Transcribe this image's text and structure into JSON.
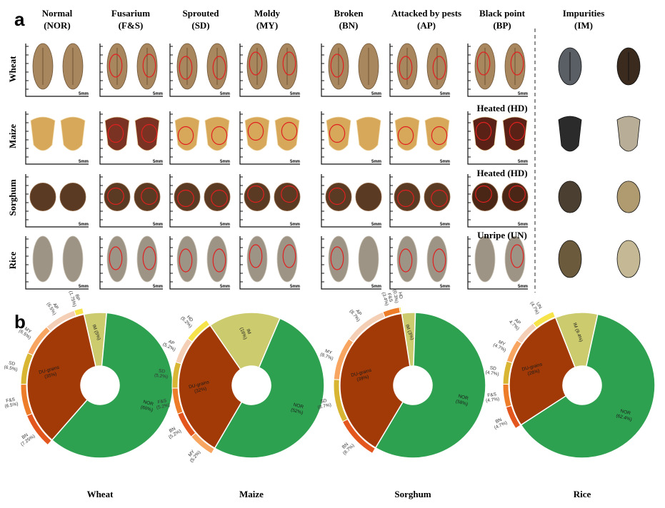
{
  "panel_a": {
    "letter": "a",
    "columns": [
      {
        "name": "Normal",
        "code": "(NOR)"
      },
      {
        "name": "Fusarium",
        "code": "(F&S)"
      },
      {
        "name": "Sprouted",
        "code": "(SD)"
      },
      {
        "name": "Moldy",
        "code": "(MY)"
      },
      {
        "name": "Broken",
        "code": "(BN)"
      },
      {
        "name": "Attacked by pests",
        "code": "(AP)"
      },
      {
        "name": "Black point",
        "code": "(BP)"
      },
      {
        "name": "Impurities",
        "code": "(IM)"
      }
    ],
    "rows": [
      "Wheat",
      "Maize",
      "Sorghum",
      "Rice"
    ],
    "sublabels": [
      "Heated (HD)",
      "Heated (HD)",
      "Unripe (UN)"
    ],
    "scale_label": "5mm",
    "scale_unit": "5\nmm",
    "colors": {
      "wheat": "#a8865e",
      "wheat_dark": "#6e5436",
      "maize": "#d8a85a",
      "maize_light": "#eed9a8",
      "sorghum": "#5a3a22",
      "sorghum_light": "#8a6242",
      "rice": "#9e9486",
      "rice_light": "#c9c2b4",
      "defect_outline": "#e02020"
    }
  },
  "panel_b": {
    "letter": "b",
    "charts": [
      "Wheat",
      "Maize",
      "Sorghum",
      "Rice"
    ]
  },
  "chart_data": [
    {
      "type": "pie",
      "title": "Wheat",
      "inner": [
        {
          "label": "NOR",
          "text": "NOR\n(60%)",
          "value": 60,
          "color": "#2ea150"
        },
        {
          "label": "DU-grains",
          "text": "DU-grains\n(35%)",
          "value": 35,
          "color": "#a23a07"
        },
        {
          "label": "IM",
          "text": "IM (5%)",
          "value": 5,
          "color": "#cccb6e"
        }
      ],
      "outer": [
        {
          "label": "BP (1.75%)",
          "value": 1.75,
          "color": "#f7e34a"
        },
        {
          "label": "AP (6.5%)",
          "value": 6.5,
          "color": "#f5cfb5"
        },
        {
          "label": "MY (6.5%)",
          "value": 6.5,
          "color": "#f7a560"
        },
        {
          "label": "SD (6.5%)",
          "value": 6.5,
          "color": "#d8b634"
        },
        {
          "label": "F&S (6.5%)",
          "value": 6.5,
          "color": "#ee7d2a"
        },
        {
          "label": "BN (7.25%)",
          "value": 7.25,
          "color": "#e3561e"
        }
      ]
    },
    {
      "type": "pie",
      "title": "Maize",
      "inner": [
        {
          "label": "NOR",
          "text": "NOR\n(52%)",
          "value": 52,
          "color": "#2ea150"
        },
        {
          "label": "DU-grains",
          "text": "DU-grains\n(32%)",
          "value": 32,
          "color": "#a23a07"
        },
        {
          "label": "IM",
          "text": "IM\n(16%)",
          "value": 16,
          "color": "#cccb6e"
        }
      ],
      "outer": [
        {
          "label": "HD (5.2%)",
          "value": 5.2,
          "color": "#f7e34a"
        },
        {
          "label": "AP (5.2%)",
          "value": 5.2,
          "color": "#f5cfb5"
        },
        {
          "label": "SD (5.2%)",
          "value": 5.2,
          "color": "#d8b634"
        },
        {
          "label": "F&S (5.2%)",
          "value": 5.2,
          "color": "#ee7d2a"
        },
        {
          "label": "BN (5.2%)",
          "value": 5.2,
          "color": "#e3561e"
        },
        {
          "label": "MY (5.2%)",
          "value": 5.2,
          "color": "#f7a560"
        }
      ]
    },
    {
      "type": "pie",
      "title": "Sorghum",
      "inner": [
        {
          "label": "NOR",
          "text": "NOR\n(58%)",
          "value": 58,
          "color": "#2ea150"
        },
        {
          "label": "DU-grains",
          "text": "DU-grains\n(39%)",
          "value": 39,
          "color": "#a23a07"
        },
        {
          "label": "IM",
          "text": "IM (3%)",
          "value": 3,
          "color": "#cccb6e"
        }
      ],
      "outer": [
        {
          "label": "HD (0.3%)",
          "value": 0.3,
          "color": "#f7e34a"
        },
        {
          "label": "F&S (3.4%)",
          "value": 3.4,
          "color": "#ee7d2a"
        },
        {
          "label": "AP (8.7%)",
          "value": 8.7,
          "color": "#f5cfb5"
        },
        {
          "label": "MY (8.7%)",
          "value": 8.7,
          "color": "#f7a560"
        },
        {
          "label": "SD (8.7%)",
          "value": 8.7,
          "color": "#d8b634"
        },
        {
          "label": "BN (8.7%)",
          "value": 8.7,
          "color": "#e3561e"
        }
      ]
    },
    {
      "type": "pie",
      "title": "Rice",
      "inner": [
        {
          "label": "NOR",
          "text": "NOR\n(62.4%)",
          "value": 62.4,
          "color": "#2ea150"
        },
        {
          "label": "DU-grains",
          "text": "DU-grains\n(28%)",
          "value": 28.2,
          "color": "#a23a07"
        },
        {
          "label": "IM",
          "text": "IM (9.4%)",
          "value": 9.4,
          "color": "#cccb6e"
        }
      ],
      "outer": [
        {
          "label": "UN (4.7%)",
          "value": 4.7,
          "color": "#f7e34a"
        },
        {
          "label": "AP 4.7%)",
          "value": 4.7,
          "color": "#f5cfb5"
        },
        {
          "label": "MY (4.7%)",
          "value": 4.7,
          "color": "#f7a560"
        },
        {
          "label": "SD (4.7%)",
          "value": 4.7,
          "color": "#d8b634"
        },
        {
          "label": "F&S (4.7%)",
          "value": 4.7,
          "color": "#ee7d2a"
        },
        {
          "label": "BN (4.7%)",
          "value": 4.7,
          "color": "#e3561e"
        }
      ]
    }
  ]
}
